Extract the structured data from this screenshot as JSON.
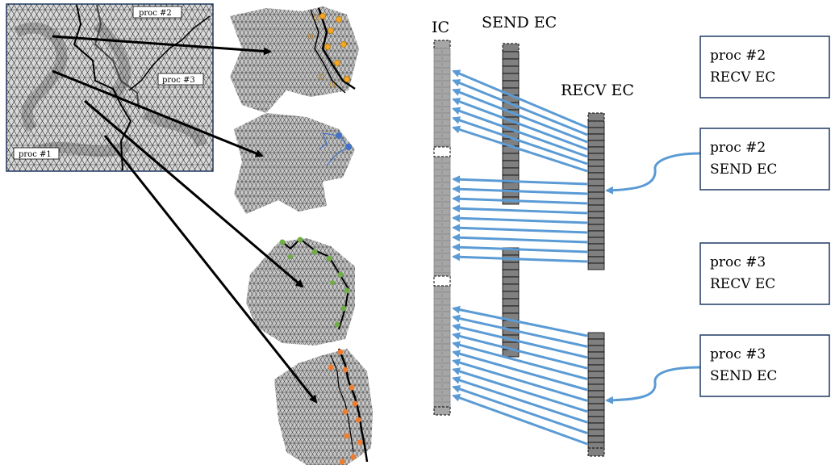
{
  "column_labels": {
    "ic": "IC",
    "send_ec": "SEND EC",
    "recv_ec": "RECV EC"
  },
  "domain_labels": [
    "proc #2",
    "proc #3",
    "proc #1"
  ],
  "boxes": [
    {
      "line1": "proc #2",
      "line2": "RECV EC"
    },
    {
      "line1": "proc #2",
      "line2": "SEND EC"
    },
    {
      "line1": "proc #3",
      "line2": "RECV EC"
    },
    {
      "line1": "proc #3",
      "line2": "SEND EC"
    }
  ],
  "colors": {
    "arrow_blue": "#5b9bd5",
    "box_border": "#1f3864",
    "mesh_gray": "#b0b0b0",
    "cell_gray": "#a0a0a0",
    "cell_dark": "#808080",
    "dot_orange_gold": "#f5a623",
    "dot_blue": "#4472c4",
    "dot_green": "#70ad47",
    "dot_orange": "#ed7d31"
  }
}
